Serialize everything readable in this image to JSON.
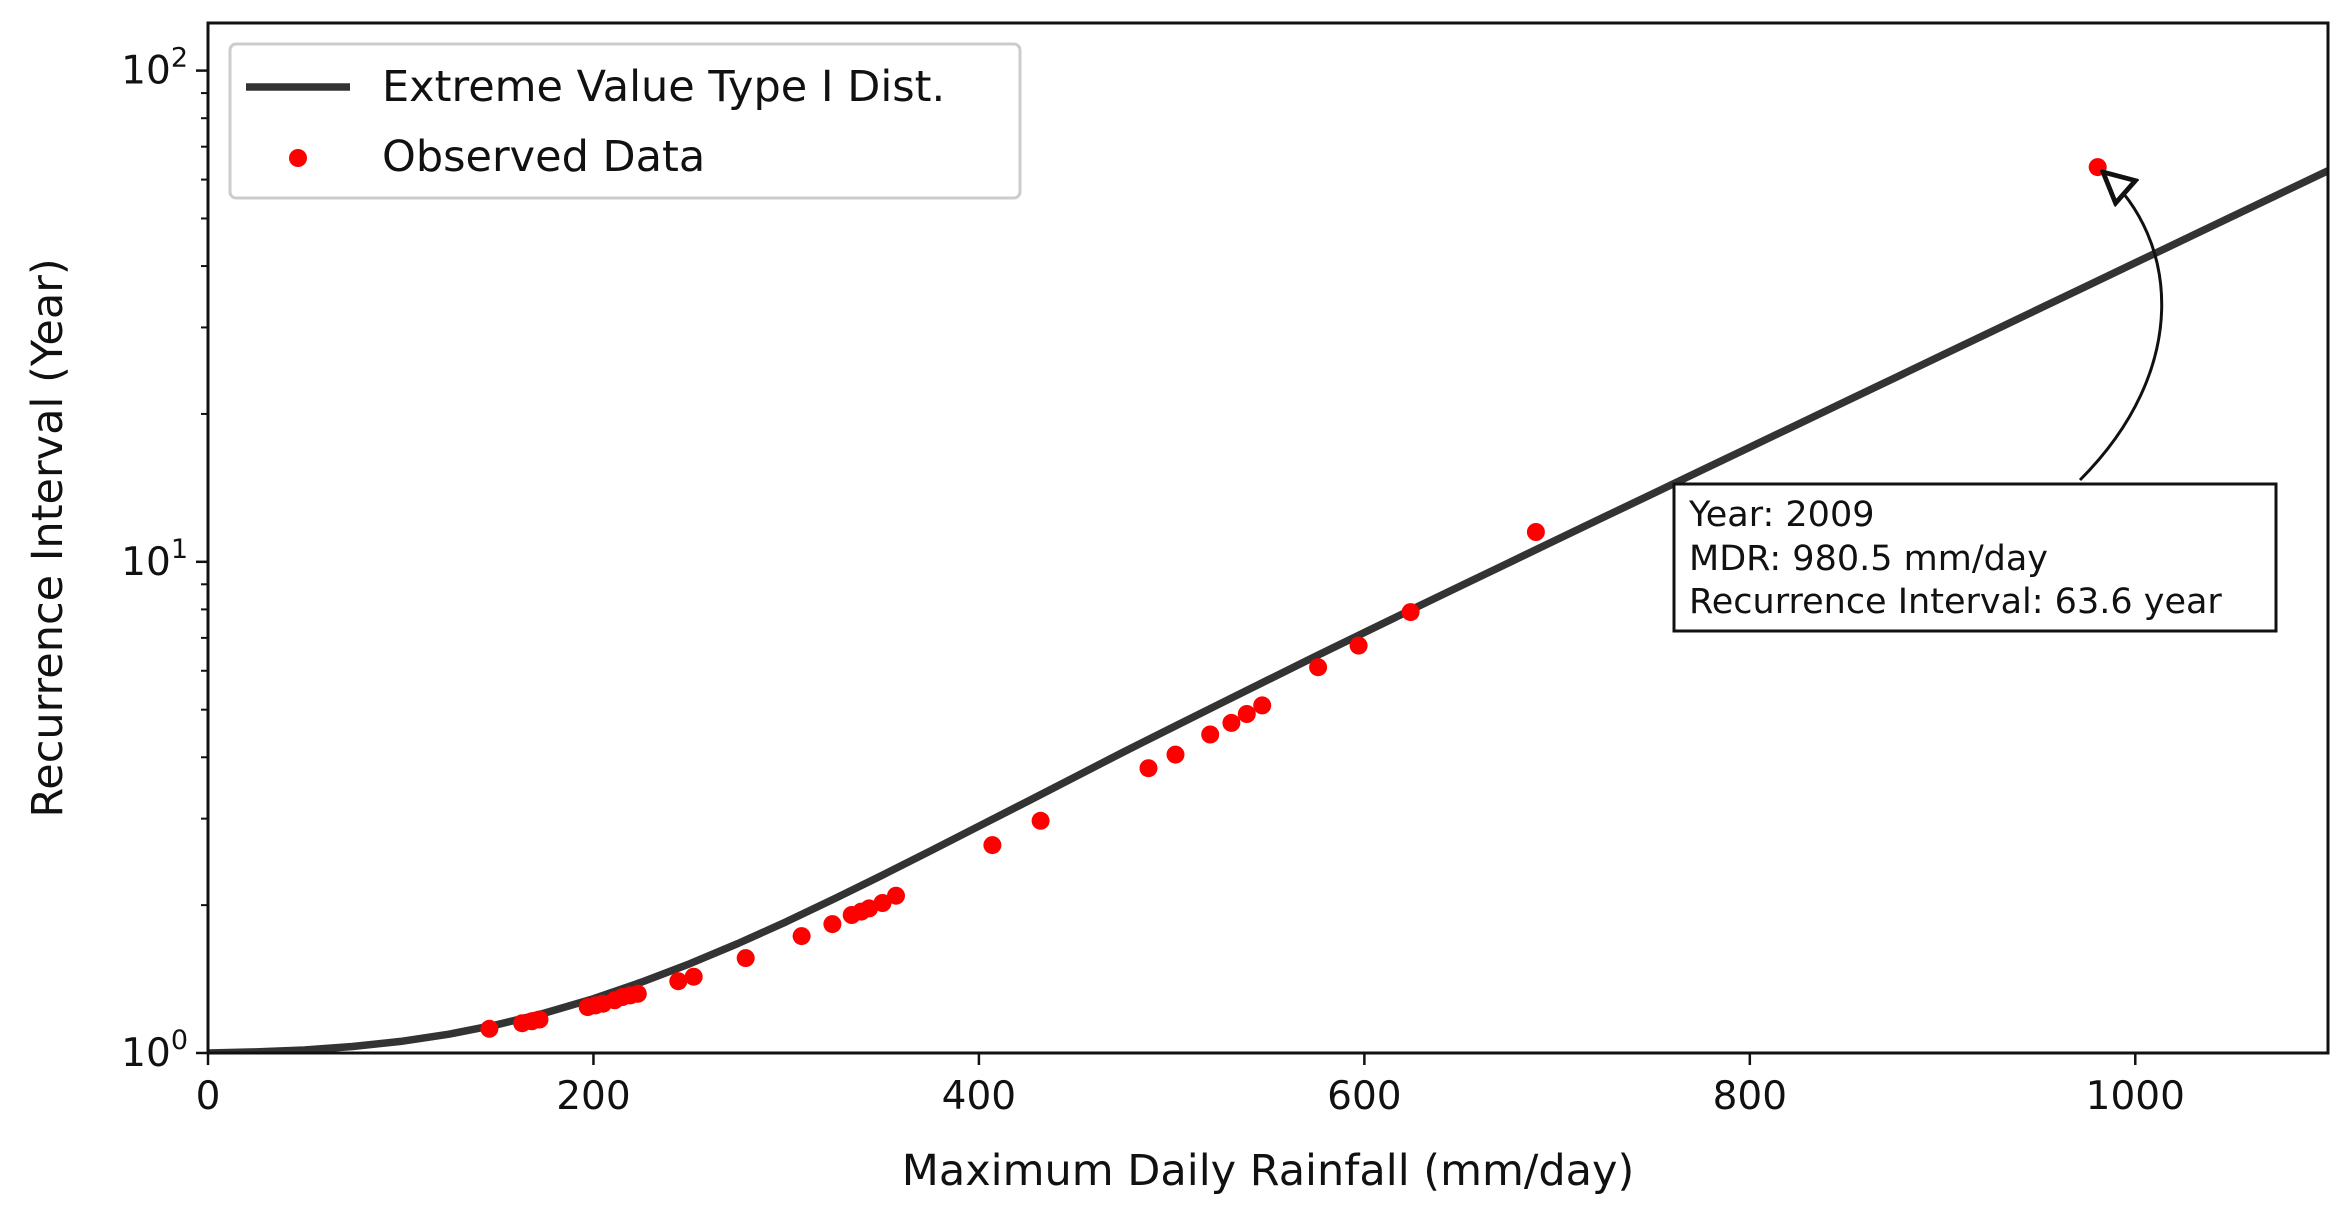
{
  "chart_data": {
    "type": "line",
    "title": "",
    "xlabel": "Maximum Daily Rainfall (mm/day)",
    "ylabel": "Recurrence Interval (Year)",
    "xlim": [
      0,
      1100
    ],
    "ylim": [
      1,
      125
    ],
    "yscale": "log",
    "x_ticks": [
      "0",
      "200",
      "400",
      "600",
      "800",
      "1000"
    ],
    "y_ticks": [
      {
        "base": "10",
        "exp": "0"
      },
      {
        "base": "10",
        "exp": "1"
      },
      {
        "base": "10",
        "exp": "2"
      }
    ],
    "grid": false,
    "legend_position": "top-left",
    "legend": [
      {
        "label": "Extreme Value Type I Dist.",
        "kind": "line",
        "color": "#333333"
      },
      {
        "label": "Observed Data",
        "kind": "marker",
        "color": "#ff0000"
      }
    ],
    "fit_curve": {
      "name": "Extreme Value Type I Dist.",
      "color": "#333333",
      "x": [
        0,
        25,
        50,
        75,
        100,
        125,
        150,
        175,
        200,
        225,
        250,
        275,
        300,
        325,
        350,
        375,
        400,
        425,
        450,
        475,
        500,
        525,
        550,
        575,
        600,
        625,
        650,
        675,
        700,
        725,
        750,
        775,
        800,
        825,
        850,
        875,
        900,
        925,
        950,
        975,
        1000,
        1025,
        1050,
        1075,
        1100
      ],
      "y": [
        1.0,
        1.005,
        1.014,
        1.031,
        1.056,
        1.092,
        1.142,
        1.207,
        1.29,
        1.394,
        1.52,
        1.671,
        1.85,
        2.06,
        2.302,
        2.58,
        2.895,
        3.25,
        3.65,
        4.1,
        4.59,
        5.14,
        5.75,
        6.43,
        7.18,
        8.01,
        8.93,
        9.96,
        11.1,
        12.37,
        13.78,
        15.36,
        17.11,
        19.06,
        21.24,
        23.66,
        26.36,
        29.37,
        32.72,
        36.45,
        40.61,
        45.24,
        50.4,
        56.15,
        62.55
      ]
    },
    "series": [
      {
        "name": "Observed Data",
        "color": "#ff0000",
        "x": [
          146,
          163,
          168,
          172,
          197,
          201,
          205,
          211,
          215,
          219,
          223,
          244,
          252,
          279,
          308,
          324,
          334,
          339,
          343,
          350,
          357,
          407,
          432,
          488,
          502,
          520,
          531,
          539,
          547,
          576,
          597,
          624,
          689,
          980.5
        ],
        "y": [
          1.12,
          1.15,
          1.16,
          1.17,
          1.24,
          1.25,
          1.26,
          1.28,
          1.3,
          1.31,
          1.32,
          1.4,
          1.43,
          1.56,
          1.73,
          1.83,
          1.91,
          1.94,
          1.97,
          2.02,
          2.09,
          2.65,
          2.97,
          3.8,
          4.05,
          4.45,
          4.7,
          4.9,
          5.1,
          6.1,
          6.75,
          7.9,
          11.5,
          63.6
        ]
      }
    ],
    "annotation": {
      "lines": [
        "Year: 2009",
        "MDR: 980.5 mm/day",
        "Recurrence Interval: 63.6 year"
      ],
      "target_x": 980.5,
      "target_y": 63.6
    }
  }
}
